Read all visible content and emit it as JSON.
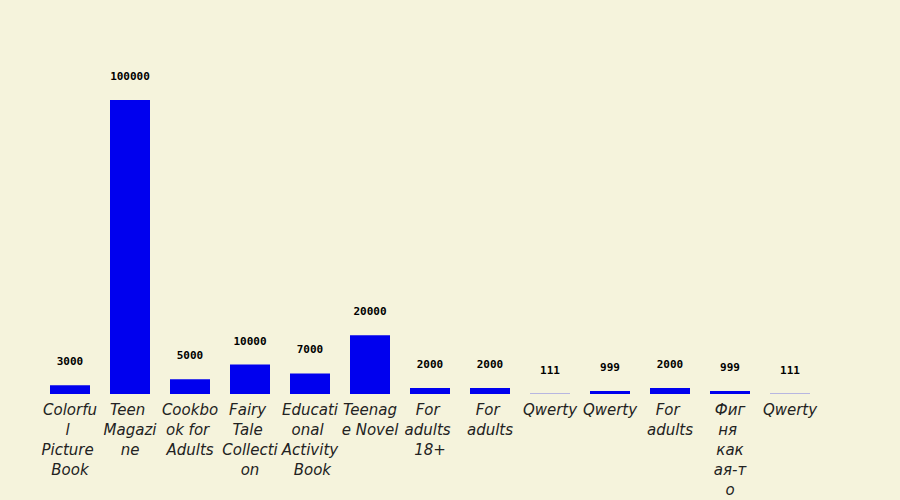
{
  "chart_data": {
    "type": "bar",
    "categories": [
      "Colorful Picture Book",
      "Teen Magazine",
      "Cookbook for Adults",
      "Fairy Tale Collection",
      "Educational Activity Book",
      "Teenage Novel",
      "For adults 18+",
      "For adults",
      "Qwerty",
      "Qwerty",
      "For adults",
      "Фигня какая-то",
      "Qwerty"
    ],
    "values": [
      3000,
      100000,
      5000,
      10000,
      7000,
      20000,
      2000,
      2000,
      111,
      999,
      2000,
      999,
      111
    ],
    "color": "#0000ee",
    "ylim": [
      0,
      100000
    ],
    "grid": false,
    "data_labels": true,
    "tick_labels": "x"
  }
}
